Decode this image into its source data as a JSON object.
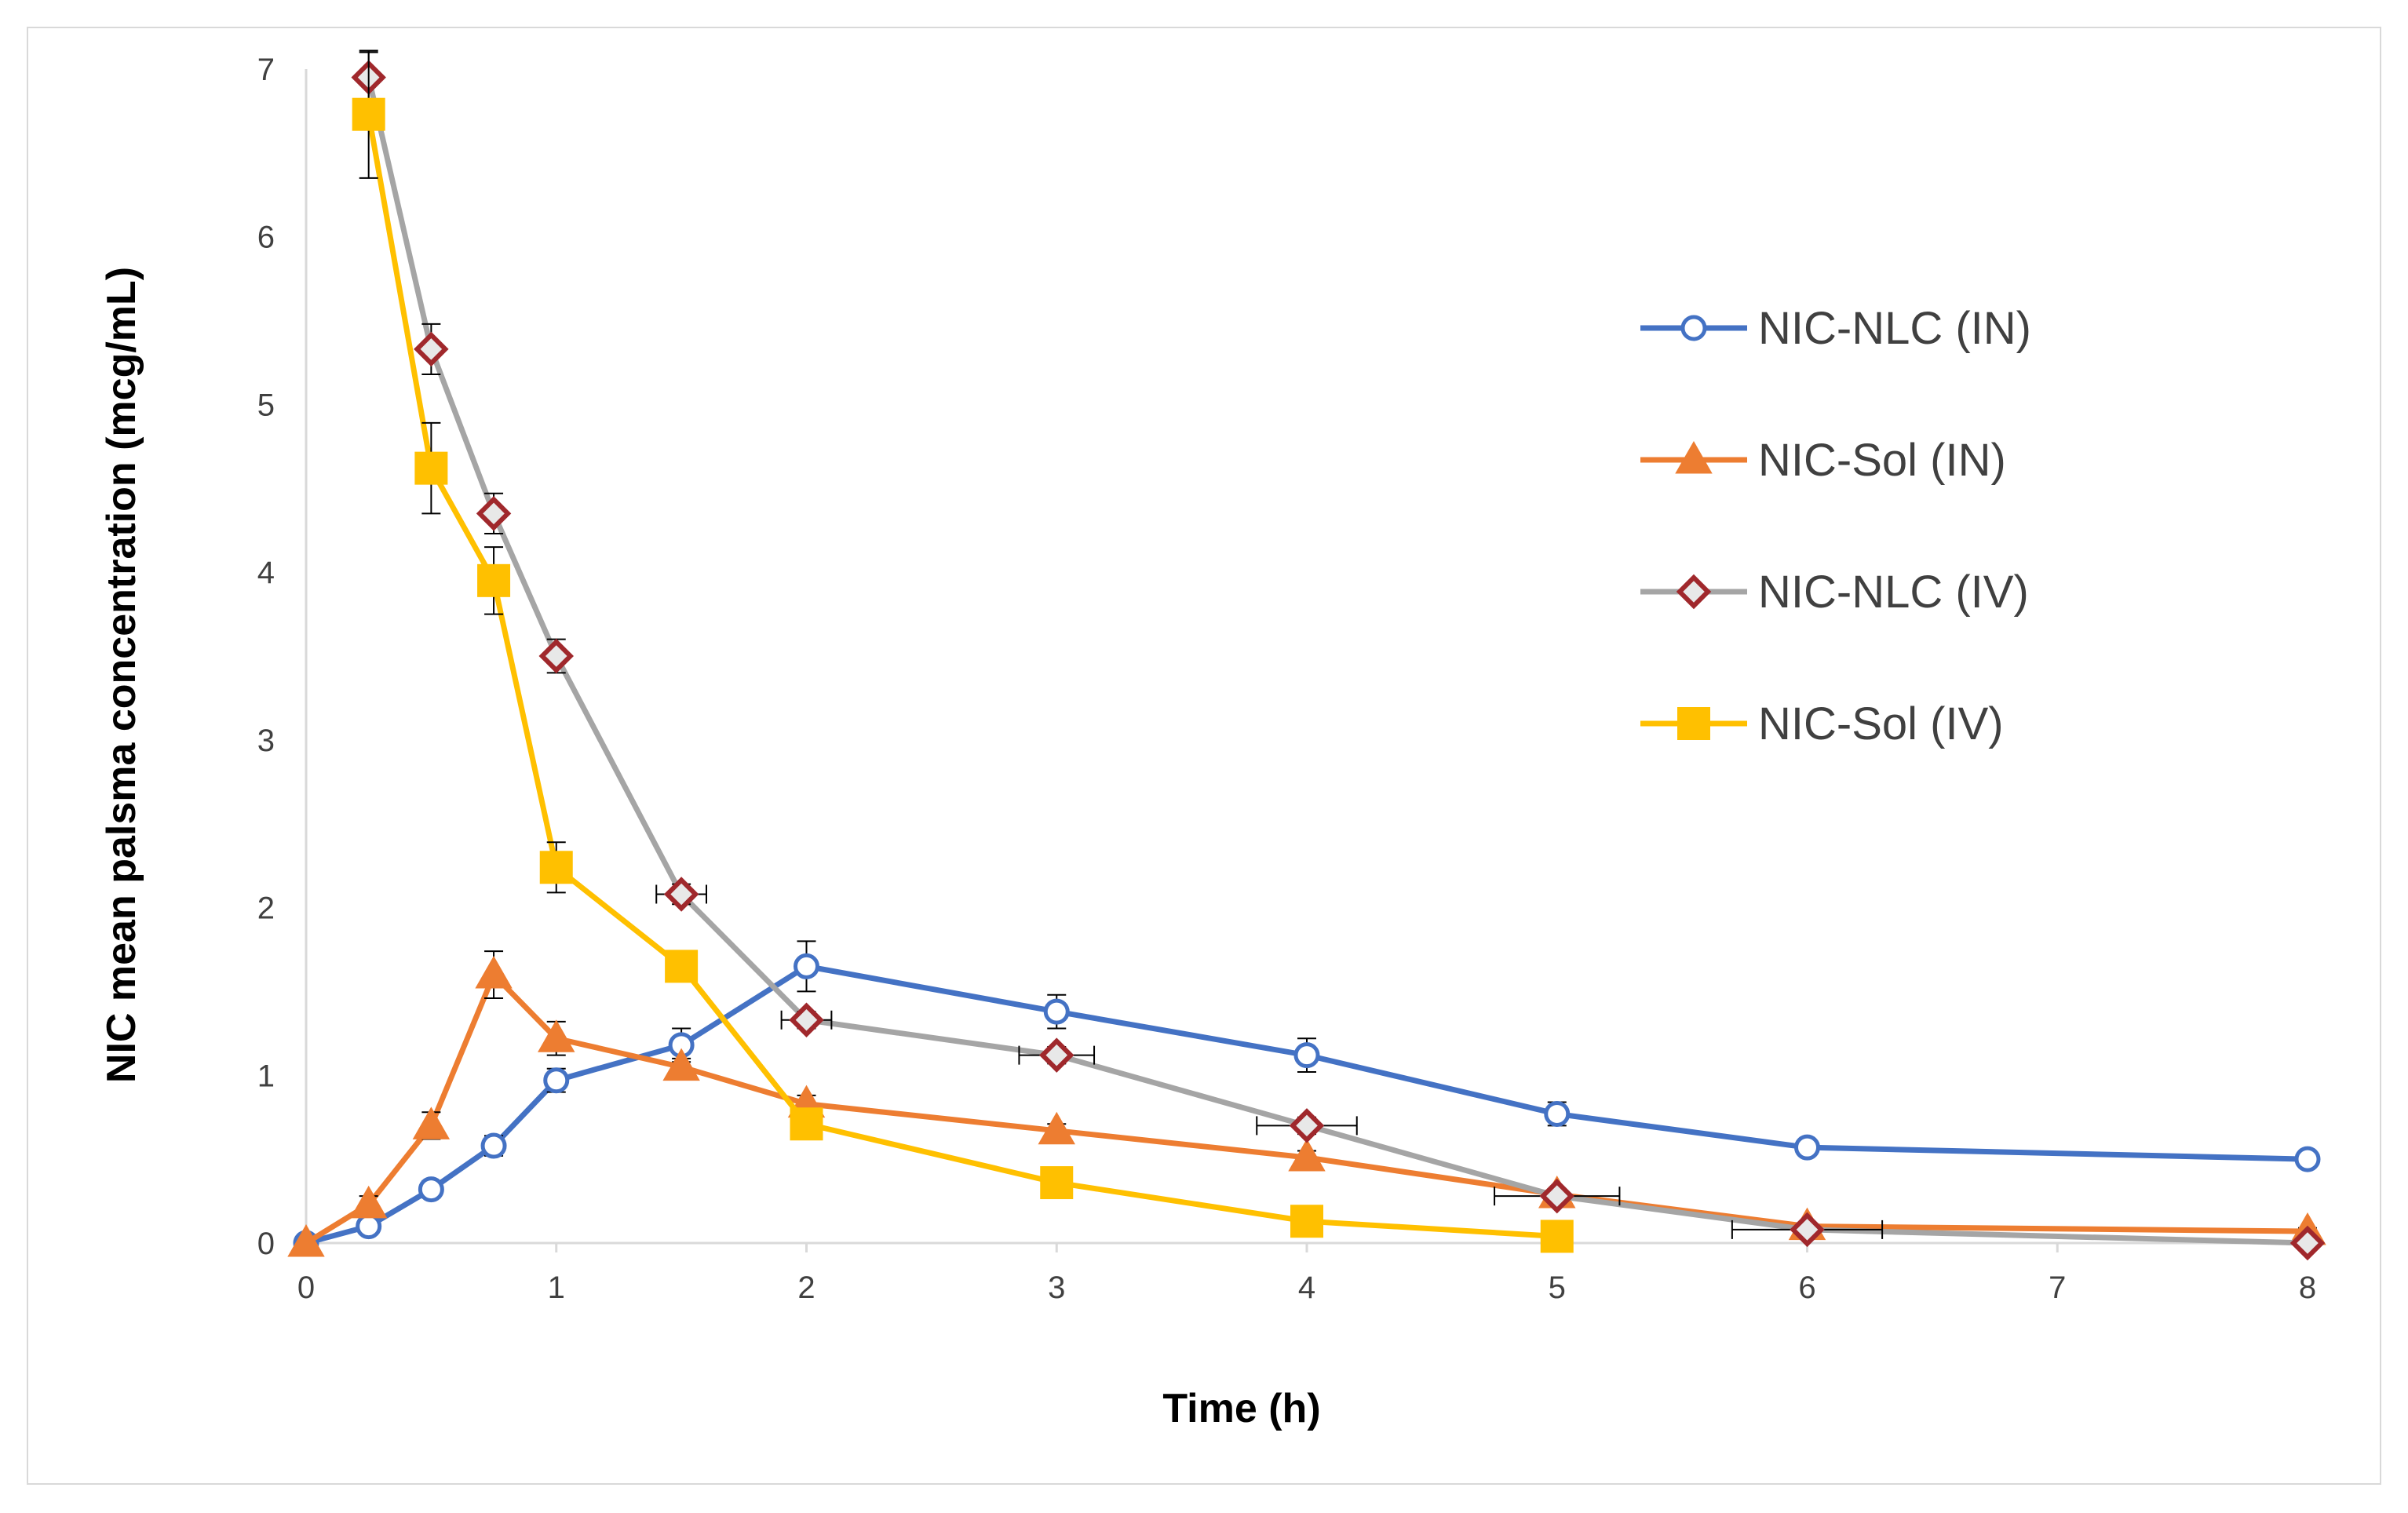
{
  "chart_data": {
    "type": "line",
    "title": "",
    "xlabel": "Time (h)",
    "ylabel": "NIC mean palsma concentration (mcg/mL)",
    "xlim": [
      0,
      8
    ],
    "ylim": [
      0,
      7
    ],
    "xticks": [
      "0",
      "1",
      "2",
      "3",
      "4",
      "5",
      "6",
      "7",
      "8"
    ],
    "yticks": [
      "0",
      "1",
      "2",
      "3",
      "4",
      "5",
      "6",
      "7"
    ],
    "grid": false,
    "legend_position": "right",
    "series": [
      {
        "name": "NIC-NLC (IN)",
        "color": "#4472c4",
        "marker": "open-circle",
        "x": [
          0,
          0.25,
          0.5,
          0.75,
          1,
          1.5,
          2,
          3,
          4,
          5,
          6,
          8
        ],
        "y": [
          0,
          0.1,
          0.32,
          0.58,
          0.97,
          1.18,
          1.65,
          1.38,
          1.12,
          0.77,
          0.57,
          0.5
        ],
        "yerr": [
          0,
          0.04,
          0.05,
          0.06,
          0.07,
          0.1,
          0.15,
          0.1,
          0.1,
          0.07,
          0.04,
          0.04
        ]
      },
      {
        "name": "NIC-Sol (IN)",
        "color": "#ed7d31",
        "marker": "triangle",
        "x": [
          0,
          0.25,
          0.5,
          0.75,
          1,
          1.5,
          2,
          3,
          4,
          5,
          6,
          8
        ],
        "y": [
          0,
          0.23,
          0.7,
          1.6,
          1.22,
          1.05,
          0.83,
          0.67,
          0.51,
          0.29,
          0.1,
          0.07
        ],
        "yerr": [
          0,
          0.05,
          0.08,
          0.14,
          0.1,
          0.05,
          0.05,
          0.04,
          0.04,
          0.03,
          0.02,
          0.02
        ]
      },
      {
        "name": "NIC-NLC (IV)",
        "color": "#a5a5a5",
        "marker_color": "#a0282c",
        "marker": "diamond",
        "x": [
          0.25,
          0.5,
          0.75,
          1,
          1.5,
          2,
          3,
          4,
          5,
          6,
          8
        ],
        "y": [
          6.95,
          5.33,
          4.35,
          3.5,
          2.08,
          1.33,
          1.12,
          0.7,
          0.28,
          0.08,
          0
        ],
        "yerr": [
          0.15,
          0.15,
          0.12,
          0.1,
          0.06,
          0.05,
          0.05,
          0.05,
          0.04,
          0.03,
          0.01
        ],
        "xerr": [
          0,
          0,
          0,
          0,
          0.1,
          0.1,
          0.15,
          0.2,
          0.25,
          0.3,
          0
        ]
      },
      {
        "name": "NIC-Sol (IV)",
        "color": "#ffc000",
        "marker": "square",
        "x": [
          0.25,
          0.5,
          0.75,
          1,
          1.5,
          2,
          3,
          4,
          5
        ],
        "y": [
          6.73,
          4.62,
          3.95,
          2.24,
          1.65,
          0.71,
          0.36,
          0.13,
          0.04
        ],
        "yerr": [
          0.38,
          0.27,
          0.2,
          0.15,
          0.08,
          0.05,
          0.03,
          0.02,
          0.02
        ]
      }
    ]
  }
}
